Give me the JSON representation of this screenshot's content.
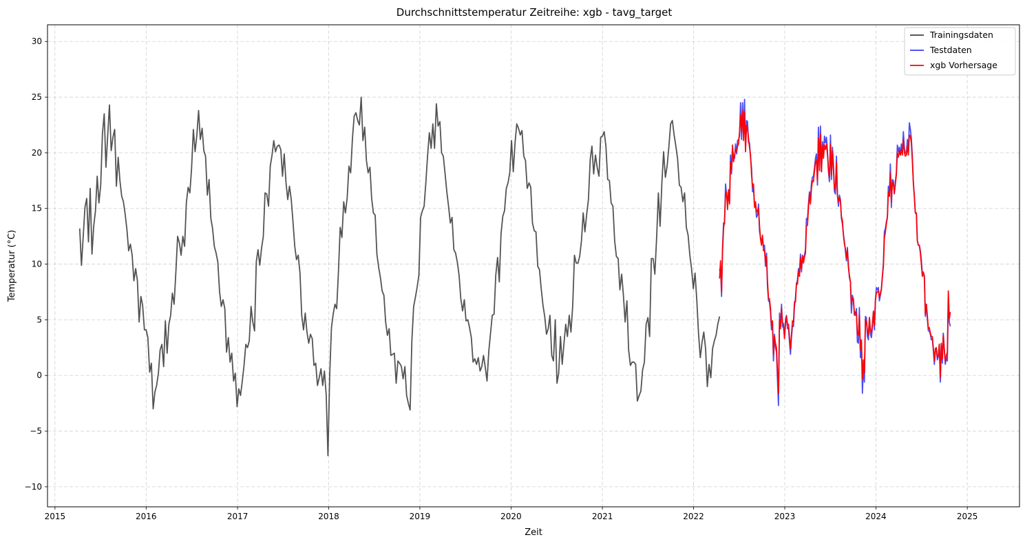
{
  "chart_data": {
    "type": "line",
    "title": "Durchschnittstemperatur Zeitreihe: xgb - tavg_target",
    "xlabel": "Zeit",
    "ylabel": "Temperatur (°C)",
    "xlim": [
      "2014-12-02",
      "2025-07-29"
    ],
    "ylim": [
      -11.8,
      31.5
    ],
    "x_ticks": [
      "2015",
      "2016",
      "2017",
      "2018",
      "2019",
      "2020",
      "2021",
      "2022",
      "2023",
      "2024",
      "2025"
    ],
    "y_ticks": [
      -10,
      -5,
      0,
      5,
      10,
      15,
      20,
      25,
      30
    ],
    "y_tick_labels": [
      "−10",
      "−5",
      "0",
      "5",
      "10",
      "15",
      "20",
      "25",
      "30"
    ],
    "grid": true,
    "legend_position": "top-right",
    "series": [
      {
        "name": "Trainingsdaten",
        "color": "#404040",
        "start": "2015-04-10",
        "end": "2022-04-15",
        "step_days": 7,
        "values": [
          13.2,
          9.9,
          12.5,
          15.1,
          15.9,
          12.0,
          16.8,
          10.9,
          13.4,
          14.8,
          17.9,
          15.5,
          17.1,
          21.7,
          23.5,
          18.7,
          21.5,
          24.3,
          20.2,
          21.4,
          22.1,
          17.0,
          19.6,
          17.5,
          16.1,
          15.6,
          14.5,
          13.1,
          11.2,
          11.8,
          10.8,
          8.5,
          9.6,
          8.5,
          4.8,
          7.1,
          6.3,
          4.1,
          4.1,
          3.4,
          0.3,
          1.1,
          -3.0,
          -1.5,
          -0.9,
          0.2,
          2.3,
          2.8,
          0.8,
          4.9,
          2.0,
          4.6,
          5.4,
          7.4,
          6.4,
          9.3,
          12.5,
          11.9,
          10.8,
          12.5,
          11.6,
          15.5,
          16.9,
          16.4,
          18.6,
          22.1,
          20.1,
          21.6,
          23.8,
          21.2,
          22.2,
          20.2,
          19.7,
          16.2,
          17.6,
          14.1,
          13.2,
          11.6,
          11.0,
          10.2,
          7.5,
          6.2,
          6.8,
          6.0,
          2.1,
          3.4,
          1.2,
          2.0,
          -0.5,
          0.2,
          -2.8,
          -1.2,
          -1.8,
          -0.5,
          0.9,
          2.8,
          2.5,
          3.1,
          6.2,
          4.8,
          4.0,
          10.2,
          11.3,
          9.9,
          11.4,
          12.5,
          16.4,
          16.3,
          15.2,
          18.8,
          19.8,
          21.1,
          20.1,
          20.6,
          20.7,
          20.3,
          17.9,
          19.9,
          17.3,
          15.8,
          17.0,
          15.8,
          13.8,
          11.6,
          10.4,
          10.8,
          9.2,
          5.4,
          4.1,
          5.6,
          3.9,
          2.9,
          3.7,
          3.3,
          0.9,
          1.1,
          -0.9,
          -0.2,
          0.6,
          -0.9,
          0.4,
          -1.8,
          -7.2,
          0.1,
          4.3,
          5.5,
          6.4,
          6.0,
          9.4,
          13.3,
          12.4,
          15.6,
          14.6,
          16.0,
          18.8,
          18.2,
          21.3,
          23.3,
          23.6,
          22.9,
          22.5,
          25.0,
          21.1,
          22.3,
          19.3,
          18.2,
          18.7,
          15.9,
          14.6,
          14.4,
          10.9,
          9.7,
          8.8,
          7.6,
          7.2,
          4.8,
          3.6,
          4.2,
          1.8,
          1.9,
          2.0,
          -0.7,
          1.3,
          1.1,
          0.8,
          -0.3,
          0.8,
          -1.8,
          -2.5,
          -3.1,
          3.1,
          6.2,
          7.0,
          7.9,
          9.0,
          14.2,
          14.8,
          15.2,
          17.3,
          19.8,
          21.8,
          20.4,
          22.6,
          20.4,
          24.4,
          22.4,
          22.8,
          20.0,
          19.7,
          18.1,
          16.5,
          15.2,
          13.7,
          14.2,
          11.3,
          11.0,
          10.2,
          9.0,
          6.9,
          5.8,
          6.8,
          4.9,
          5.0,
          4.3,
          3.4,
          1.2,
          1.5,
          1.0,
          1.6,
          0.4,
          0.8,
          1.8,
          0.7,
          -0.5,
          2.2,
          3.8,
          5.4,
          5.5,
          9.0,
          10.6,
          8.4,
          12.7,
          14.3,
          14.8,
          16.8,
          17.3,
          18.2,
          21.1,
          18.3,
          20.9,
          22.6,
          22.2,
          21.6,
          22.0,
          19.7,
          19.3,
          16.8,
          17.3,
          16.9,
          13.7,
          13.0,
          12.9,
          9.8,
          9.5,
          7.8,
          6.3,
          5.3,
          3.7,
          4.2,
          5.4,
          1.8,
          1.3,
          5.0,
          -0.7,
          0.2,
          3.5,
          1.0,
          2.9,
          4.6,
          3.5,
          5.4,
          3.9,
          6.3,
          10.8,
          10.1,
          10.1,
          10.7,
          12.1,
          14.6,
          12.9,
          14.5,
          15.8,
          19.4,
          20.6,
          18.1,
          19.8,
          18.7,
          17.9,
          21.4,
          21.5,
          21.9,
          20.6,
          17.6,
          17.5,
          15.5,
          15.2,
          12.1,
          10.7,
          10.5,
          7.7,
          9.1,
          7.2,
          4.8,
          6.7,
          2.3,
          0.9,
          1.2,
          1.2,
          1.0,
          -2.3,
          -1.8,
          -1.4,
          0.5,
          1.2,
          4.6,
          5.2,
          3.5,
          10.5,
          10.5,
          9.1,
          12.4,
          16.4,
          13.4,
          17.3,
          20.1,
          17.8,
          18.8,
          20.5,
          22.6,
          22.9,
          21.6,
          20.6,
          19.5,
          17.1,
          16.9,
          15.6,
          16.4,
          13.3,
          12.6,
          10.8,
          9.6,
          7.8,
          9.2,
          6.7,
          3.7,
          1.6,
          3.0,
          3.9,
          2.4,
          -1.0,
          1.0,
          -0.2,
          2.4,
          3.1,
          3.6,
          4.6,
          5.3
        ]
      },
      {
        "name": "Testdaten",
        "color": "#3a3af0",
        "start": "2022-04-15",
        "end": "2025-04-05",
        "step_days": 4,
        "values": [
          9.4,
          9.8,
          7.1,
          11.5,
          13.7,
          13.6,
          17.2,
          16.3,
          15.7,
          16.4,
          15.6,
          19.8,
          18.1,
          20.3,
          19.7,
          19.5,
          20.8,
          19.9,
          21.1,
          21.2,
          21.5,
          24.5,
          21.2,
          24.5,
          21.8,
          24.8,
          20.6,
          22.9,
          22.8,
          20.9,
          20.9,
          19.5,
          18.7,
          16.5,
          16.8,
          15.3,
          15.3,
          14.2,
          14.4,
          15.4,
          13.0,
          12.4,
          12.2,
          12.2,
          11.6,
          11.7,
          9.8,
          11.0,
          8.0,
          6.7,
          6.6,
          5.7,
          4.1,
          4.6,
          1.3,
          3.7,
          2.5,
          2.1,
          -0.5,
          -2.7,
          5.6,
          4.5,
          6.4,
          4.4,
          4.3,
          3.6,
          5.0,
          5.4,
          4.2,
          4.3,
          3.0,
          1.9,
          3.4,
          4.5,
          4.4,
          6.2,
          7.0,
          8.2,
          8.6,
          9.6,
          9.3,
          10.9,
          9.3,
          10.7,
          10.5,
          10.8,
          11.3,
          14.1,
          14.0,
          15.4,
          16.5,
          15.8,
          17.3,
          17.8,
          17.9,
          18.6,
          19.5,
          19.9,
          17.1,
          22.3,
          18.8,
          22.4,
          18.3,
          21.0,
          19.9,
          21.5,
          20.9,
          21.4,
          20.2,
          18.3,
          17.4,
          21.6,
          17.6,
          20.5,
          19.0,
          16.5,
          16.3,
          19.7,
          16.2,
          15.2,
          16.2,
          15.8,
          14.1,
          13.6,
          12.7,
          12.0,
          11.2,
          10.3,
          11.5,
          9.9,
          8.8,
          8.4,
          5.6,
          7.2,
          6.8,
          5.4,
          5.4,
          6.0,
          3.0,
          2.9,
          6.1,
          1.6,
          3.0,
          -1.6,
          0.9,
          -0.6,
          5.3,
          5.2,
          3.5,
          3.2,
          5.2,
          3.7,
          3.4,
          4.3,
          5.8,
          4.1,
          6.8,
          7.9,
          7.7,
          7.9,
          6.7,
          7.2,
          7.7,
          8.9,
          10.1,
          12.9,
          13.2,
          13.8,
          14.2,
          17.0,
          16.1,
          19.0,
          15.1,
          17.6,
          17.5,
          16.3,
          17.4,
          18.2,
          20.7,
          20.1,
          20.5,
          19.8,
          20.8,
          20.0,
          21.9,
          20.4,
          20.0,
          19.9,
          21.2,
          20.1,
          22.7,
          22.1,
          21.3,
          19.6,
          17.4,
          16.0,
          14.6,
          14.5,
          12.1,
          11.7,
          11.7,
          11.2,
          10.4,
          9.1,
          9.2,
          9.0,
          5.3,
          6.4,
          5.1,
          4.0,
          4.0,
          3.7,
          3.2,
          3.3,
          2.3,
          1.0,
          2.1,
          2.4,
          1.4,
          1.7,
          2.8,
          -0.6,
          2.8,
          1.1,
          3.8,
          2.3,
          1.0,
          1.6,
          1.3,
          6.9,
          4.8,
          4.4
        ]
      },
      {
        "name": "xgb Vorhersage",
        "color": "#ff0000",
        "start": "2022-04-15",
        "end": "2025-04-05",
        "step_days": 4,
        "values": [
          8.7,
          10.3,
          7.5,
          11.1,
          13.2,
          13.9,
          16.2,
          16.5,
          14.9,
          16.7,
          15.4,
          19.2,
          18.5,
          20.7,
          19.2,
          19.8,
          20.3,
          20.1,
          20.6,
          20.8,
          21.9,
          23.4,
          21.9,
          23.8,
          21.1,
          23.7,
          20.1,
          22.5,
          22.1,
          21.3,
          20.5,
          19.8,
          18.1,
          16.9,
          17.2,
          15.1,
          15.6,
          14.7,
          14.8,
          15.0,
          13.5,
          12.2,
          11.7,
          12.6,
          11.2,
          11.3,
          10.2,
          10.7,
          8.5,
          6.9,
          6.9,
          6.0,
          4.5,
          4.9,
          1.9,
          3.5,
          2.9,
          2.5,
          0.3,
          -1.6,
          5.0,
          4.2,
          6.0,
          4.8,
          4.6,
          3.3,
          4.6,
          5.3,
          4.6,
          4.6,
          3.4,
          2.4,
          3.7,
          4.9,
          4.8,
          6.6,
          6.6,
          8.3,
          8.2,
          9.4,
          8.9,
          10.6,
          9.6,
          10.8,
          10.1,
          10.6,
          11.0,
          13.4,
          13.5,
          15.0,
          16.3,
          15.4,
          16.8,
          17.5,
          17.4,
          18.3,
          19.2,
          19.3,
          17.5,
          21.3,
          18.4,
          21.7,
          18.3,
          20.7,
          19.5,
          20.7,
          20.3,
          20.8,
          19.9,
          18.5,
          17.8,
          20.8,
          18.0,
          20.2,
          18.5,
          16.7,
          16.9,
          19.2,
          16.2,
          15.6,
          16.0,
          15.6,
          14.3,
          13.9,
          12.6,
          11.8,
          11.4,
          10.5,
          11.3,
          9.7,
          9.0,
          8.4,
          6.4,
          7.0,
          6.9,
          5.5,
          5.7,
          5.6,
          3.7,
          3.6,
          5.4,
          2.3,
          3.2,
          -0.3,
          1.4,
          0.2,
          5.0,
          4.8,
          4.0,
          3.6,
          5.2,
          4.1,
          3.8,
          4.7,
          5.7,
          4.5,
          6.7,
          7.4,
          7.5,
          7.6,
          7.0,
          7.4,
          7.8,
          8.9,
          9.8,
          12.3,
          12.9,
          13.6,
          14.2,
          16.5,
          16.1,
          18.2,
          15.6,
          17.4,
          17.2,
          16.4,
          17.2,
          18.0,
          20.0,
          19.6,
          20.2,
          19.8,
          20.3,
          19.8,
          21.2,
          20.0,
          19.7,
          19.8,
          20.6,
          19.8,
          21.6,
          21.5,
          20.9,
          19.2,
          17.3,
          16.1,
          14.6,
          14.6,
          12.1,
          11.7,
          11.7,
          11.0,
          10.0,
          8.9,
          9.3,
          8.8,
          5.5,
          6.4,
          5.4,
          4.2,
          4.3,
          3.8,
          3.5,
          3.5,
          2.5,
          1.3,
          2.4,
          2.5,
          1.6,
          1.8,
          2.8,
          -0.2,
          2.9,
          1.5,
          3.6,
          2.3,
          1.2,
          1.8,
          2.1,
          7.6,
          5.1,
          5.7
        ]
      }
    ]
  }
}
